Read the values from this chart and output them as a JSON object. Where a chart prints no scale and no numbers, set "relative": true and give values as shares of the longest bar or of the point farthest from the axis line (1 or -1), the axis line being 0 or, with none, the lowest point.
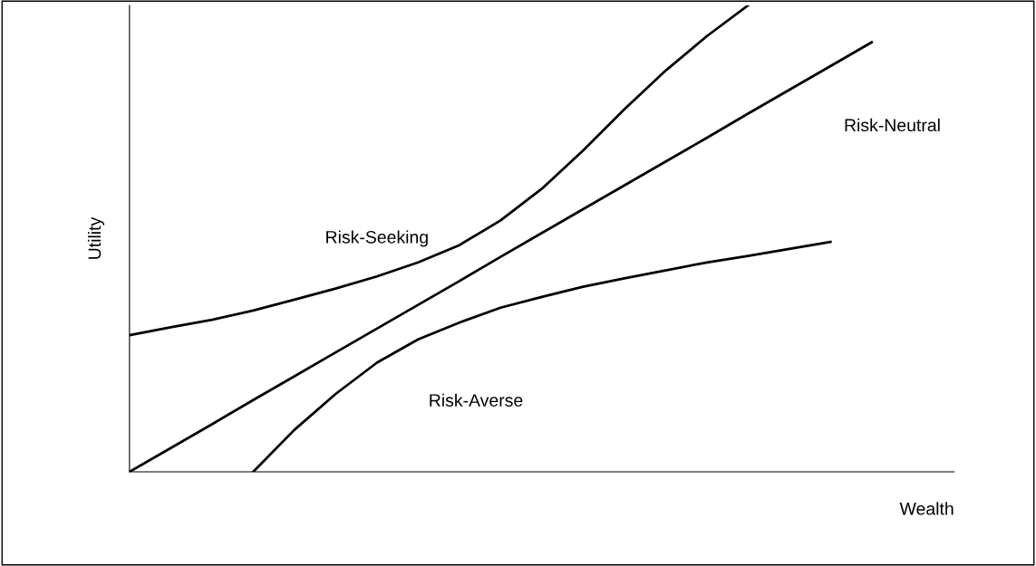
{
  "chart_data": {
    "type": "line",
    "relative": true,
    "xlabel": "Wealth",
    "ylabel": "Utility",
    "tick_labels": false,
    "categories": [
      null,
      null,
      null,
      null,
      null,
      null,
      null,
      null,
      null,
      null,
      null,
      null,
      null,
      null,
      null,
      null,
      null,
      null,
      null,
      null,
      null
    ],
    "series": [
      {
        "color": "#000000",
        "values": [
          0.293,
          0.31,
          0.326,
          0.346,
          0.369,
          0.393,
          0.419,
          0.449,
          0.486,
          0.539,
          0.607,
          0.689,
          0.777,
          0.86,
          0.934,
          1.0,
          null,
          null,
          null,
          null,
          null
        ]
      },
      {
        "color": "#000000",
        "values": [
          0,
          0.051,
          0.102,
          0.154,
          0.205,
          0.256,
          0.307,
          0.358,
          0.409,
          0.461,
          0.512,
          0.563,
          0.614,
          0.665,
          0.716,
          0.768,
          0.819,
          0.87,
          0.921,
          null,
          null
        ]
      },
      {
        "color": "#000000",
        "values": [
          null,
          null,
          null,
          0,
          0.09,
          0.167,
          0.234,
          0.284,
          0.32,
          0.352,
          0.375,
          0.397,
          0.415,
          0.432,
          0.449,
          0.463,
          0.478,
          0.493,
          null,
          null,
          null
        ]
      }
    ],
    "annotations": [
      "Risk-Seeking",
      "Risk-Neutral",
      "Risk-Averse"
    ]
  }
}
